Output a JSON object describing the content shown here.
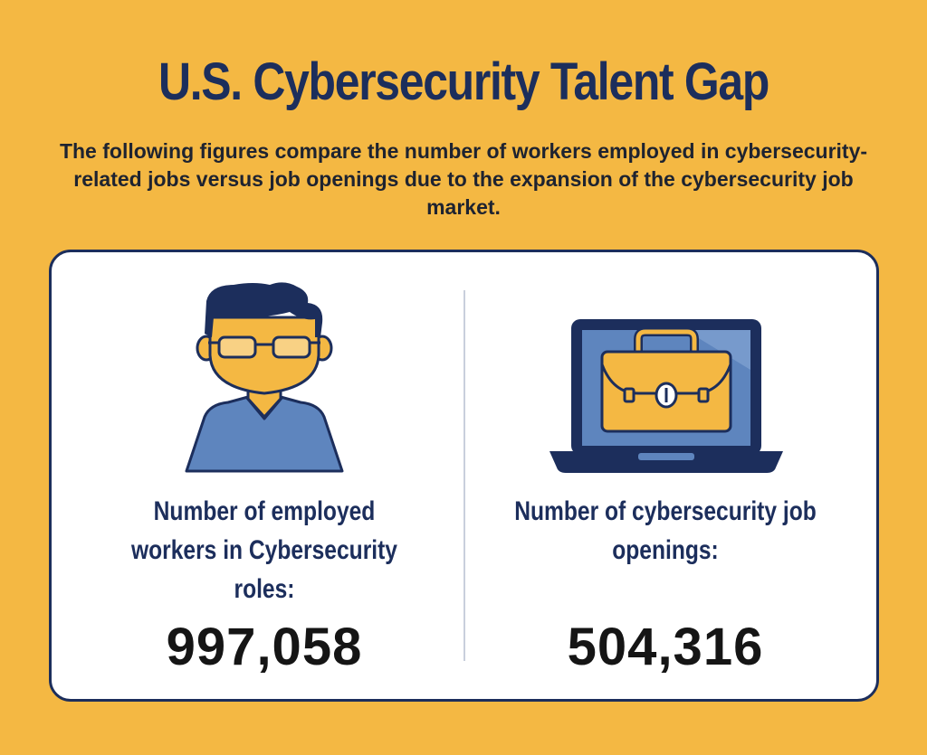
{
  "header": {
    "title": "U.S. Cybersecurity Talent Gap",
    "subtitle": "The following figures compare the number of workers employed in cybersecurity-related jobs versus job openings due to the expansion of the cybersecurity job market."
  },
  "stats": [
    {
      "label": "Number of employed workers in Cybersecurity roles:",
      "value": "997,058",
      "icon": "worker-icon"
    },
    {
      "label": "Number of cybersecurity job openings:",
      "value": "504,316",
      "icon": "laptop-briefcase-icon"
    }
  ],
  "colors": {
    "background": "#F4B843",
    "navy": "#1C2E5C",
    "blue": "#5E85BE",
    "card": "#FFFFFF",
    "skin": "#F4B843"
  }
}
